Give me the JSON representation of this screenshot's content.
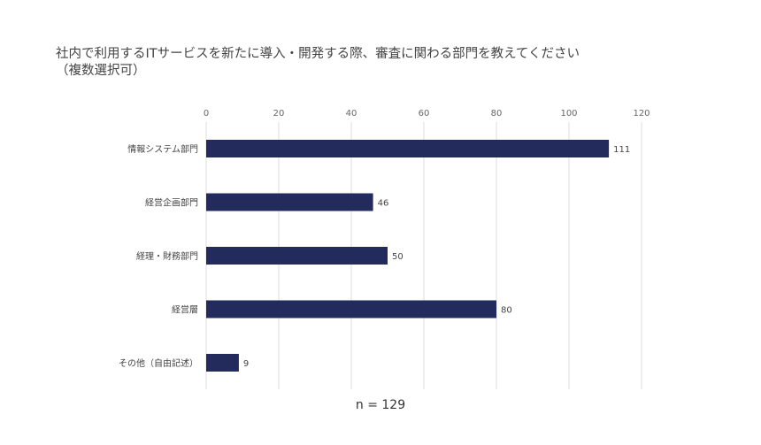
{
  "chart_data": {
    "type": "bar",
    "orientation": "horizontal",
    "title_lines": [
      "社内で利用するITサービスを新たに導入・開発する際、審査に関わる部門を教えてください",
      "（複数選択可）"
    ],
    "categories": [
      "情報システム部門",
      "経営企画部門",
      "経理・財務部門",
      "経営層",
      "その他（自由記述）"
    ],
    "values": [
      111,
      46,
      50,
      80,
      9
    ],
    "xlim": [
      0,
      120
    ],
    "xticks": [
      0,
      20,
      40,
      60,
      80,
      100,
      120
    ],
    "axis_position": "top",
    "grid": true,
    "data_labels": true,
    "bar_color": "#232a5c",
    "grid_color": "#dddddd",
    "note": "n = 129"
  }
}
